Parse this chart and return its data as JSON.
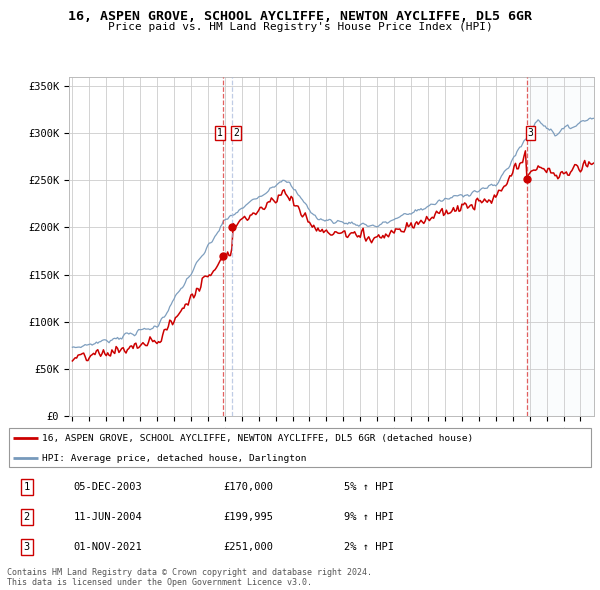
{
  "title": "16, ASPEN GROVE, SCHOOL AYCLIFFE, NEWTON AYCLIFFE, DL5 6GR",
  "subtitle": "Price paid vs. HM Land Registry's House Price Index (HPI)",
  "legend_property": "16, ASPEN GROVE, SCHOOL AYCLIFFE, NEWTON AYCLIFFE, DL5 6GR (detached house)",
  "legend_hpi": "HPI: Average price, detached house, Darlington",
  "footer1": "Contains HM Land Registry data © Crown copyright and database right 2024.",
  "footer2": "This data is licensed under the Open Government Licence v3.0.",
  "transactions": [
    {
      "num": 1,
      "date": "05-DEC-2003",
      "price": "£170,000",
      "price_val": 170000,
      "pct": "5% ↑ HPI",
      "year": 2003.92
    },
    {
      "num": 2,
      "date": "11-JUN-2004",
      "price": "£199,995",
      "price_val": 199995,
      "pct": "9% ↑ HPI",
      "year": 2004.44
    },
    {
      "num": 3,
      "date": "01-NOV-2021",
      "price": "£251,000",
      "price_val": 251000,
      "pct": "2% ↑ HPI",
      "year": 2021.83
    }
  ],
  "property_color": "#cc0000",
  "hpi_color": "#7799bb",
  "background_highlight": "#dde8f5",
  "vline_color": "#dd4444",
  "ylim": [
    0,
    360000
  ],
  "yticks": [
    0,
    50000,
    100000,
    150000,
    200000,
    250000,
    300000,
    350000
  ],
  "ytick_labels": [
    "£0",
    "£50K",
    "£100K",
    "£150K",
    "£200K",
    "£250K",
    "£300K",
    "£350K"
  ],
  "xstart": 1995,
  "xend": 2025
}
